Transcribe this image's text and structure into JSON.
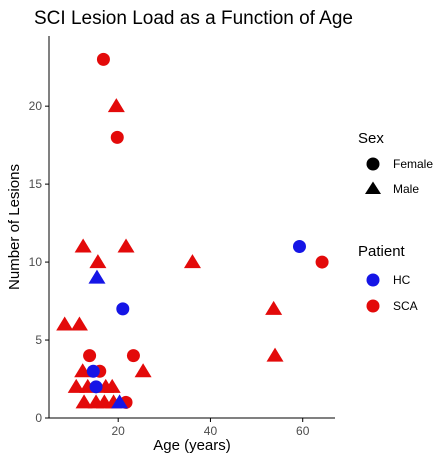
{
  "chart_data": {
    "type": "scatter",
    "title": "SCI Lesion Load as a Function of Age",
    "xlabel": "Age (years)",
    "ylabel": "Number of Lesions",
    "xlim": [
      5,
      67
    ],
    "ylim": [
      0,
      24.5
    ],
    "xticks": [
      20,
      40,
      60
    ],
    "yticks": [
      0,
      5,
      10,
      15,
      20
    ],
    "grid": false,
    "legend_position": "right",
    "legends": {
      "sex": {
        "title": "Sex",
        "entries": [
          {
            "label": "Female",
            "shape": "circle"
          },
          {
            "label": "Male",
            "shape": "triangle"
          }
        ]
      },
      "patient": {
        "title": "Patient",
        "entries": [
          {
            "label": "HC",
            "color": "#1515e6"
          },
          {
            "label": "SCA",
            "color": "#e30a0a"
          }
        ]
      }
    },
    "colors": {
      "HC": "#1515e6",
      "SCA": "#e30a0a"
    },
    "points": [
      {
        "x": 16.8,
        "y": 23,
        "sex": "Female",
        "patient": "SCA"
      },
      {
        "x": 19.6,
        "y": 20,
        "sex": "Male",
        "patient": "SCA"
      },
      {
        "x": 19.8,
        "y": 18,
        "sex": "Female",
        "patient": "SCA"
      },
      {
        "x": 12.4,
        "y": 11,
        "sex": "Male",
        "patient": "SCA"
      },
      {
        "x": 21.7,
        "y": 11,
        "sex": "Male",
        "patient": "SCA"
      },
      {
        "x": 15.6,
        "y": 10,
        "sex": "Male",
        "patient": "SCA"
      },
      {
        "x": 36.1,
        "y": 10,
        "sex": "Male",
        "patient": "SCA"
      },
      {
        "x": 64.2,
        "y": 10,
        "sex": "Female",
        "patient": "SCA"
      },
      {
        "x": 59.3,
        "y": 11,
        "sex": "Female",
        "patient": "HC"
      },
      {
        "x": 15.4,
        "y": 9,
        "sex": "Male",
        "patient": "HC"
      },
      {
        "x": 21.0,
        "y": 7,
        "sex": "Female",
        "patient": "HC"
      },
      {
        "x": 53.7,
        "y": 7,
        "sex": "Male",
        "patient": "SCA"
      },
      {
        "x": 8.4,
        "y": 6,
        "sex": "Male",
        "patient": "SCA"
      },
      {
        "x": 11.6,
        "y": 6,
        "sex": "Male",
        "patient": "SCA"
      },
      {
        "x": 13.8,
        "y": 4,
        "sex": "Female",
        "patient": "SCA"
      },
      {
        "x": 23.3,
        "y": 4,
        "sex": "Female",
        "patient": "SCA"
      },
      {
        "x": 54.0,
        "y": 4,
        "sex": "Male",
        "patient": "SCA"
      },
      {
        "x": 12.3,
        "y": 3,
        "sex": "Male",
        "patient": "SCA"
      },
      {
        "x": 16.0,
        "y": 3,
        "sex": "Female",
        "patient": "SCA"
      },
      {
        "x": 25.4,
        "y": 3,
        "sex": "Male",
        "patient": "SCA"
      },
      {
        "x": 14.6,
        "y": 3,
        "sex": "Female",
        "patient": "HC"
      },
      {
        "x": 10.9,
        "y": 2,
        "sex": "Male",
        "patient": "SCA"
      },
      {
        "x": 13.4,
        "y": 2,
        "sex": "Male",
        "patient": "SCA"
      },
      {
        "x": 17.3,
        "y": 2,
        "sex": "Male",
        "patient": "SCA"
      },
      {
        "x": 18.7,
        "y": 2,
        "sex": "Male",
        "patient": "SCA"
      },
      {
        "x": 15.2,
        "y": 2,
        "sex": "Female",
        "patient": "HC"
      },
      {
        "x": 12.6,
        "y": 1,
        "sex": "Male",
        "patient": "SCA"
      },
      {
        "x": 15.2,
        "y": 1,
        "sex": "Male",
        "patient": "SCA"
      },
      {
        "x": 17.0,
        "y": 1,
        "sex": "Male",
        "patient": "SCA"
      },
      {
        "x": 19.0,
        "y": 1,
        "sex": "Male",
        "patient": "SCA"
      },
      {
        "x": 21.7,
        "y": 1,
        "sex": "Female",
        "patient": "SCA"
      },
      {
        "x": 20.3,
        "y": 1,
        "sex": "Male",
        "patient": "HC"
      }
    ]
  }
}
